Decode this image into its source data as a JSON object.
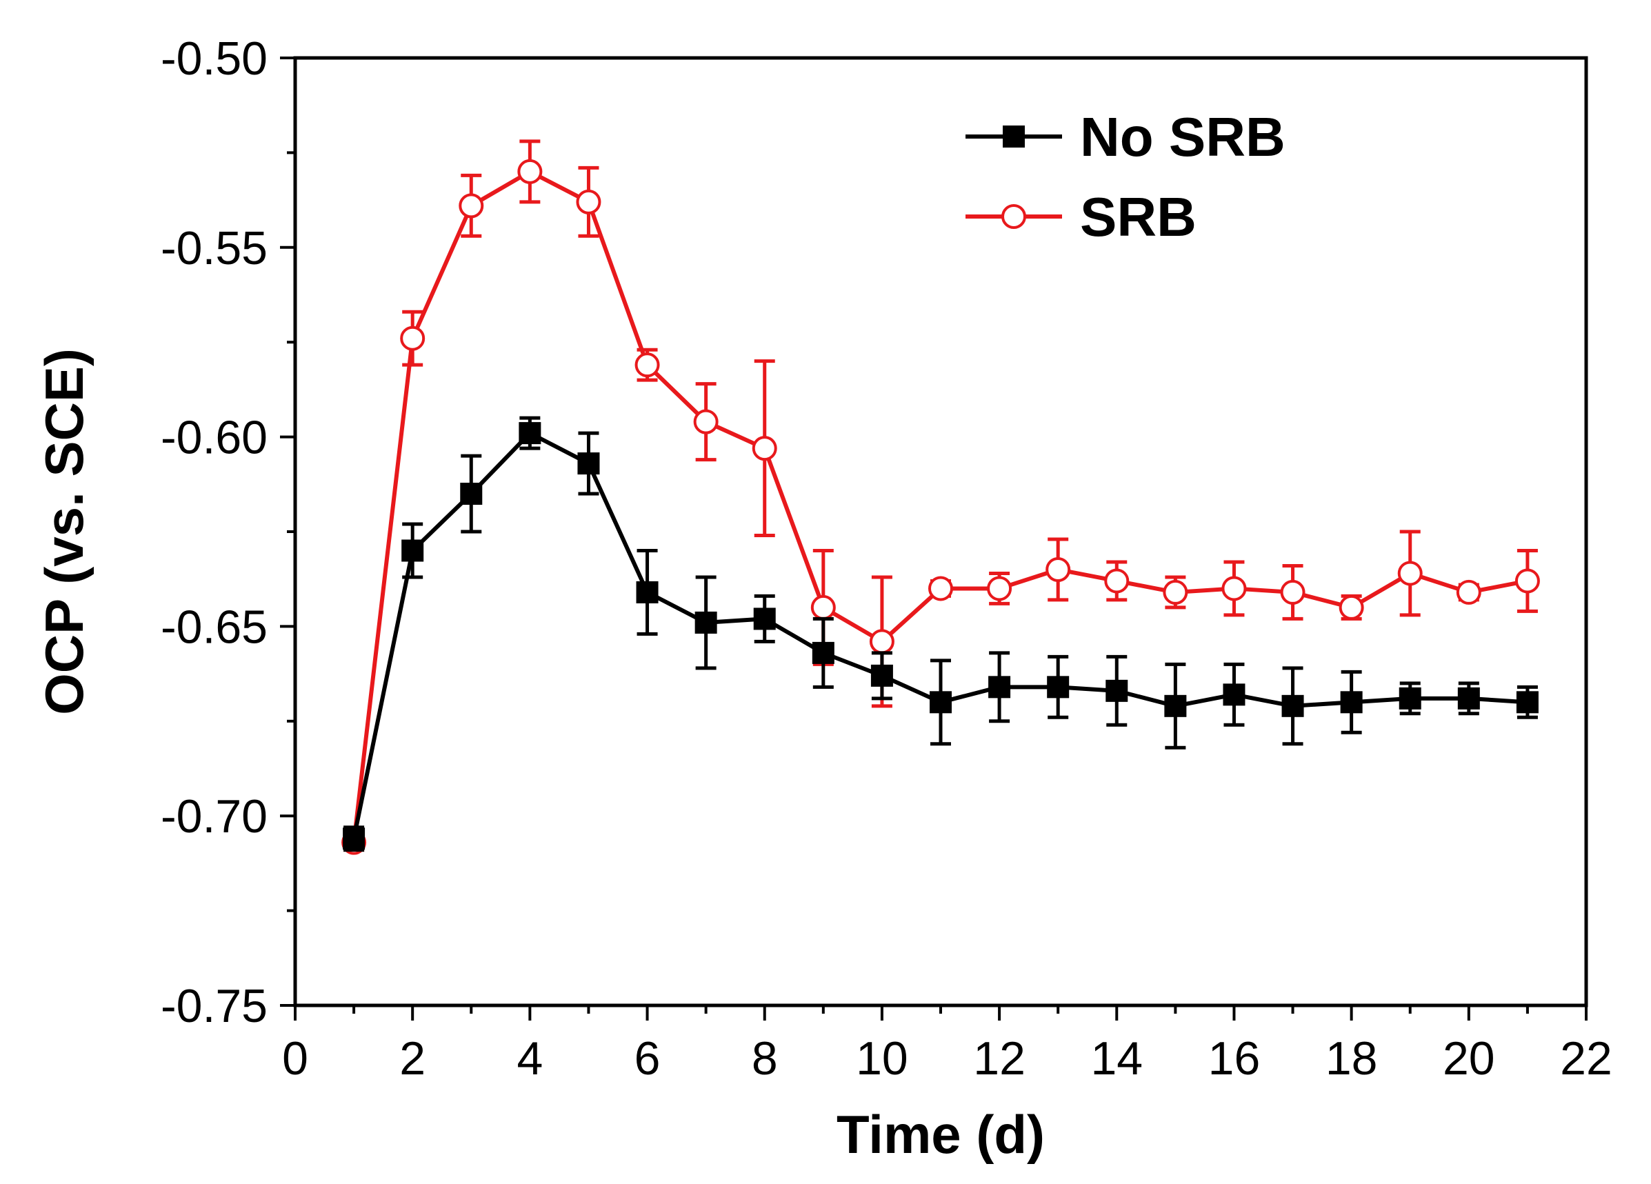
{
  "chart_data": {
    "type": "line",
    "title": "",
    "xlabel": "Time (d)",
    "ylabel": "OCP (vs. SCE)",
    "xlim": [
      0,
      22
    ],
    "ylim": [
      -0.75,
      -0.5
    ],
    "xticks": [
      0,
      2,
      4,
      6,
      8,
      10,
      12,
      14,
      16,
      18,
      20,
      22
    ],
    "xtick_labels": [
      "0",
      "2",
      "4",
      "6",
      "8",
      "10",
      "12",
      "14",
      "16",
      "18",
      "20",
      "22"
    ],
    "yticks": [
      -0.75,
      -0.7,
      -0.65,
      -0.6,
      -0.55,
      -0.5
    ],
    "ytick_labels": [
      "-0.75",
      "-0.70",
      "-0.65",
      "-0.60",
      "-0.55",
      "-0.50"
    ],
    "grid": false,
    "legend_position": "top-right",
    "x": [
      1,
      2,
      3,
      4,
      5,
      6,
      7,
      8,
      9,
      10,
      11,
      12,
      13,
      14,
      15,
      16,
      17,
      18,
      19,
      20,
      21
    ],
    "series": [
      {
        "name": "No SRB",
        "color": "#000000",
        "marker": "filled-square",
        "values": [
          -0.706,
          -0.63,
          -0.615,
          -0.599,
          -0.607,
          -0.641,
          -0.649,
          -0.648,
          -0.657,
          -0.663,
          -0.67,
          -0.666,
          -0.666,
          -0.667,
          -0.671,
          -0.668,
          -0.671,
          -0.67,
          -0.669,
          -0.669,
          -0.67
        ],
        "errors": [
          0.003,
          0.007,
          0.01,
          0.004,
          0.008,
          0.011,
          0.012,
          0.006,
          0.009,
          0.006,
          0.011,
          0.009,
          0.008,
          0.009,
          0.011,
          0.008,
          0.01,
          0.008,
          0.004,
          0.004,
          0.004
        ]
      },
      {
        "name": "SRB",
        "color": "#e8191c",
        "marker": "open-circle",
        "values": [
          -0.707,
          -0.574,
          -0.539,
          -0.53,
          -0.538,
          -0.581,
          -0.596,
          -0.603,
          -0.645,
          -0.654,
          -0.64,
          -0.64,
          -0.635,
          -0.638,
          -0.641,
          -0.64,
          -0.641,
          -0.645,
          -0.636,
          -0.641,
          -0.638
        ],
        "errors": [
          0.002,
          0.007,
          0.008,
          0.008,
          0.009,
          0.004,
          0.01,
          0.023,
          0.015,
          0.017,
          0.002,
          0.004,
          0.008,
          0.005,
          0.004,
          0.007,
          0.007,
          0.003,
          0.011,
          0.002,
          0.008
        ]
      }
    ]
  }
}
